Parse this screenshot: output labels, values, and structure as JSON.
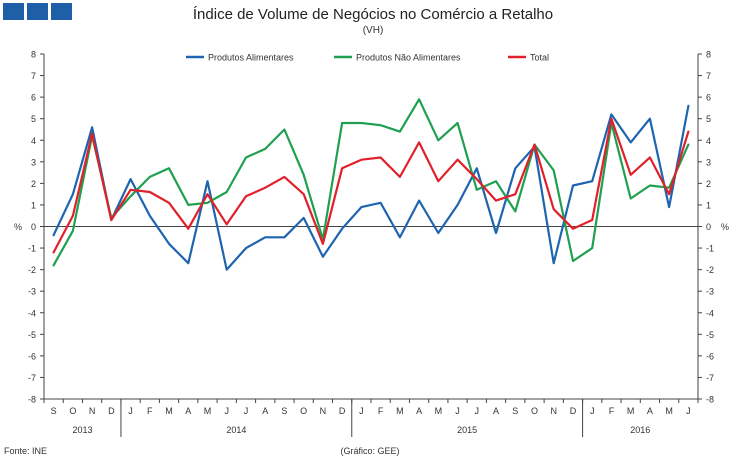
{
  "header": {
    "title": "Índice de Volume de Negócios no Comércio a Retalho",
    "subtitle": "(VH)"
  },
  "footer": {
    "source": "Fonte: INE",
    "credit": "(Gráfico: GEE)"
  },
  "chart_data": {
    "type": "line",
    "title": "Índice de Volume de Negócios no Comércio a Retalho",
    "subtitle": "(VH)",
    "ylabel_left": "%",
    "ylabel_right": "%",
    "ylim": [
      -8,
      8
    ],
    "yticks": [
      -8,
      -7,
      -6,
      -5,
      -4,
      -3,
      -2,
      -1,
      0,
      1,
      2,
      3,
      4,
      5,
      6,
      7,
      8
    ],
    "grid": false,
    "legend_position": "top-center",
    "categories": [
      "S",
      "O",
      "N",
      "D",
      "J",
      "F",
      "M",
      "A",
      "M",
      "J",
      "J",
      "A",
      "S",
      "O",
      "N",
      "D",
      "J",
      "F",
      "M",
      "A",
      "M",
      "J",
      "J",
      "A",
      "S",
      "O",
      "N",
      "D",
      "J",
      "F",
      "M",
      "A",
      "M",
      "J"
    ],
    "years": [
      {
        "label": "2013",
        "start": 0,
        "end": 3
      },
      {
        "label": "2014",
        "start": 4,
        "end": 15
      },
      {
        "label": "2015",
        "start": 16,
        "end": 27
      },
      {
        "label": "2016",
        "start": 28,
        "end": 33
      }
    ],
    "series": [
      {
        "name": "Produtos Alimentares",
        "color": "#1f64b0",
        "values": [
          -0.4,
          1.5,
          4.6,
          0.3,
          2.2,
          0.5,
          -0.8,
          -1.7,
          2.1,
          -2.0,
          -1.0,
          -0.5,
          -0.5,
          0.4,
          -1.4,
          -0.1,
          0.9,
          1.1,
          -0.5,
          1.2,
          -0.3,
          1.0,
          2.7,
          -0.3,
          2.7,
          3.7,
          -1.7,
          1.9,
          2.1,
          5.2,
          3.9,
          5.0,
          0.9,
          5.6
        ]
      },
      {
        "name": "Produtos Não Alimentares",
        "color": "#1fa050",
        "values": [
          -1.8,
          -0.2,
          4.2,
          0.4,
          1.4,
          2.3,
          2.7,
          1.0,
          1.1,
          1.6,
          3.2,
          3.6,
          4.5,
          2.4,
          -0.6,
          4.8,
          4.8,
          4.7,
          4.4,
          5.9,
          4.0,
          4.8,
          1.7,
          2.1,
          0.7,
          3.8,
          2.6,
          -1.6,
          -1.0,
          4.8,
          1.3,
          1.9,
          1.8,
          3.8
        ]
      },
      {
        "name": "Total",
        "color": "#e0202a",
        "values": [
          -1.2,
          0.5,
          4.3,
          0.3,
          1.7,
          1.6,
          1.1,
          -0.1,
          1.5,
          0.1,
          1.4,
          1.8,
          2.3,
          1.5,
          -0.8,
          2.7,
          3.1,
          3.2,
          2.3,
          3.9,
          2.1,
          3.1,
          2.2,
          1.2,
          1.5,
          3.8,
          0.8,
          -0.1,
          0.3,
          5.0,
          2.4,
          3.2,
          1.5,
          4.4
        ]
      }
    ]
  }
}
